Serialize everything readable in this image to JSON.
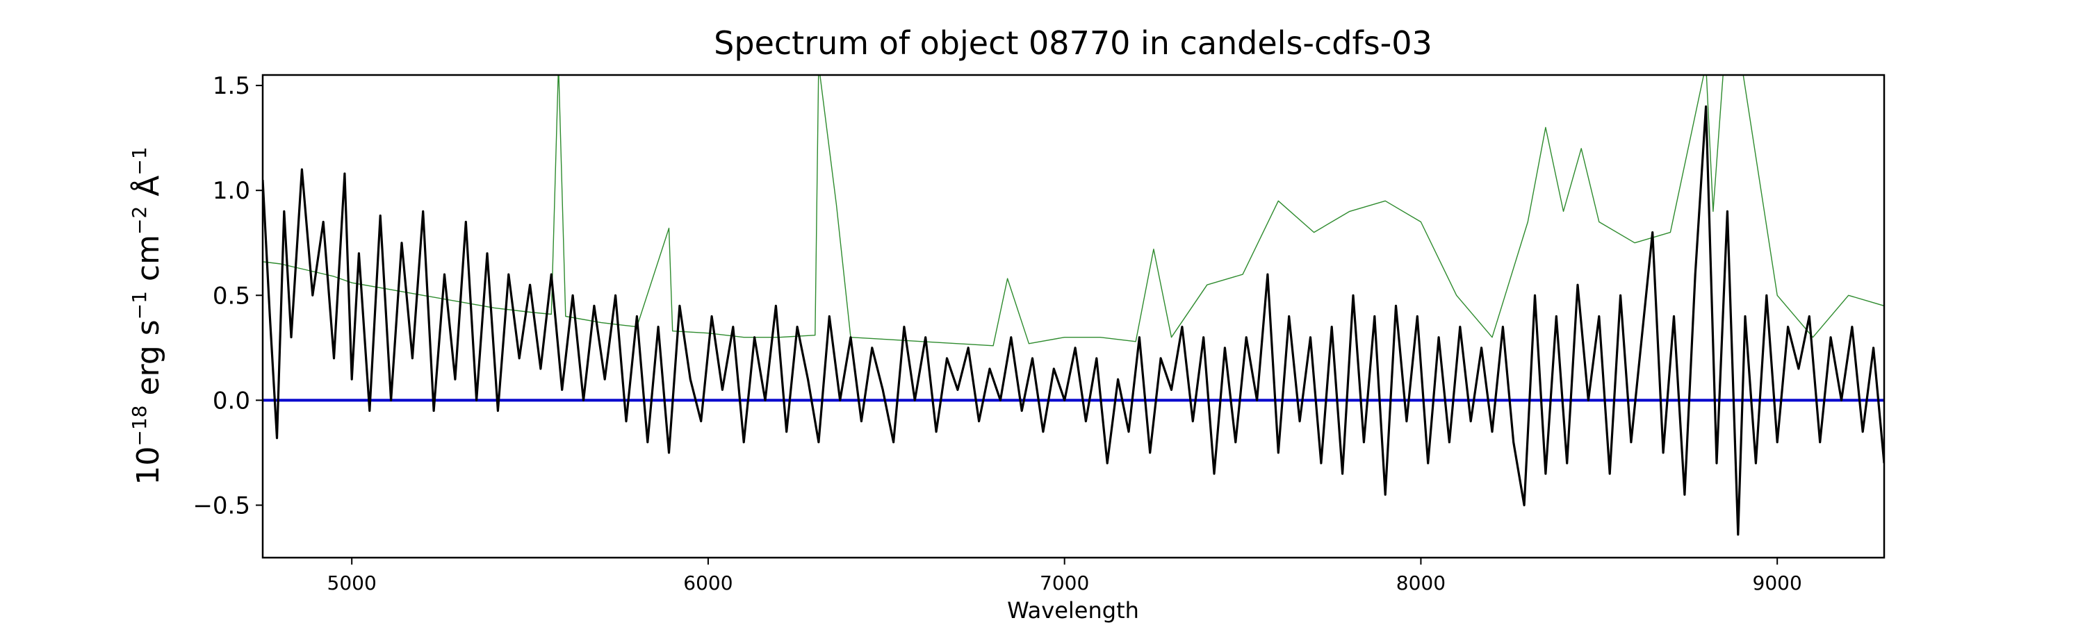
{
  "chart_data": {
    "type": "line",
    "title": "Spectrum of object 08770 in candels-cdfs-03",
    "xlabel": "Wavelength",
    "ylabel_parts": {
      "base": "10",
      "exp18": "−18",
      "erg": " erg s",
      "exp1a": "−1",
      "cm": " cm",
      "exp2": "−2",
      "ang": " Å",
      "exp1b": "−1"
    },
    "xlim": [
      4750,
      9300
    ],
    "ylim": [
      -0.75,
      1.55
    ],
    "xticks": [
      {
        "value": 5000,
        "label": "5000"
      },
      {
        "value": 6000,
        "label": "6000"
      },
      {
        "value": 7000,
        "label": "7000"
      },
      {
        "value": 8000,
        "label": "8000"
      },
      {
        "value": 9000,
        "label": "9000"
      }
    ],
    "yticks": [
      {
        "value": -0.5,
        "label": "−0.5"
      },
      {
        "value": 0.0,
        "label": "0.0"
      },
      {
        "value": 0.5,
        "label": "0.5"
      },
      {
        "value": 1.0,
        "label": "1.0"
      },
      {
        "value": 1.5,
        "label": "1.5"
      }
    ],
    "series": [
      {
        "role": "error",
        "color": "#2e8b2e",
        "x": [
          4750,
          4800,
          4850,
          4900,
          4950,
          5000,
          5100,
          5200,
          5300,
          5400,
          5500,
          5560,
          5580,
          5600,
          5700,
          5800,
          5890,
          5900,
          6000,
          6100,
          6200,
          6300,
          6310,
          6360,
          6400,
          6500,
          6600,
          6700,
          6800,
          6840,
          6900,
          7000,
          7100,
          7200,
          7250,
          7300,
          7400,
          7500,
          7600,
          7700,
          7800,
          7900,
          8000,
          8100,
          8200,
          8300,
          8350,
          8400,
          8450,
          8500,
          8600,
          8700,
          8800,
          8820,
          8850,
          8900,
          9000,
          9100,
          9200,
          9300
        ],
        "y": [
          0.66,
          0.65,
          0.63,
          0.61,
          0.59,
          0.56,
          0.53,
          0.5,
          0.47,
          0.44,
          0.42,
          0.41,
          1.6,
          0.4,
          0.37,
          0.35,
          0.82,
          0.33,
          0.32,
          0.3,
          0.3,
          0.31,
          1.6,
          0.93,
          0.3,
          0.29,
          0.28,
          0.27,
          0.26,
          0.58,
          0.27,
          0.3,
          0.3,
          0.28,
          0.72,
          0.3,
          0.55,
          0.6,
          0.95,
          0.8,
          0.9,
          0.95,
          0.85,
          0.5,
          0.3,
          0.85,
          1.3,
          0.9,
          1.2,
          0.85,
          0.75,
          0.8,
          1.6,
          0.9,
          1.6,
          1.6,
          0.5,
          0.3,
          0.5,
          0.45
        ]
      },
      {
        "role": "flux",
        "color": "#000000",
        "x": [
          4750,
          4770,
          4790,
          4810,
          4830,
          4860,
          4890,
          4920,
          4950,
          4980,
          5000,
          5020,
          5050,
          5080,
          5110,
          5140,
          5170,
          5200,
          5230,
          5260,
          5290,
          5320,
          5350,
          5380,
          5410,
          5440,
          5470,
          5500,
          5530,
          5560,
          5590,
          5620,
          5650,
          5680,
          5710,
          5740,
          5770,
          5800,
          5830,
          5860,
          5890,
          5920,
          5950,
          5980,
          6010,
          6040,
          6070,
          6100,
          6130,
          6160,
          6190,
          6220,
          6250,
          6280,
          6310,
          6340,
          6370,
          6400,
          6430,
          6460,
          6490,
          6520,
          6550,
          6580,
          6610,
          6640,
          6670,
          6700,
          6730,
          6760,
          6790,
          6820,
          6850,
          6880,
          6910,
          6940,
          6970,
          7000,
          7030,
          7060,
          7090,
          7120,
          7150,
          7180,
          7210,
          7240,
          7270,
          7300,
          7330,
          7360,
          7390,
          7420,
          7450,
          7480,
          7510,
          7540,
          7570,
          7600,
          7630,
          7660,
          7690,
          7720,
          7750,
          7780,
          7810,
          7840,
          7870,
          7900,
          7930,
          7960,
          7990,
          8020,
          8050,
          8080,
          8110,
          8140,
          8170,
          8200,
          8230,
          8260,
          8290,
          8320,
          8350,
          8380,
          8410,
          8440,
          8470,
          8500,
          8530,
          8560,
          8590,
          8620,
          8650,
          8680,
          8710,
          8740,
          8770,
          8800,
          8830,
          8860,
          8890,
          8910,
          8940,
          8970,
          9000,
          9030,
          9060,
          9090,
          9120,
          9150,
          9180,
          9210,
          9240,
          9270,
          9300
        ],
        "y": [
          1.05,
          0.4,
          -0.18,
          0.9,
          0.3,
          1.1,
          0.5,
          0.85,
          0.2,
          1.08,
          0.1,
          0.7,
          -0.05,
          0.88,
          0.0,
          0.75,
          0.2,
          0.9,
          -0.05,
          0.6,
          0.1,
          0.85,
          0.0,
          0.7,
          -0.05,
          0.6,
          0.2,
          0.55,
          0.15,
          0.6,
          0.05,
          0.5,
          0.0,
          0.45,
          0.1,
          0.5,
          -0.1,
          0.4,
          -0.2,
          0.35,
          -0.25,
          0.45,
          0.1,
          -0.1,
          0.4,
          0.05,
          0.35,
          -0.2,
          0.3,
          0.0,
          0.45,
          -0.15,
          0.35,
          0.1,
          -0.2,
          0.4,
          0.0,
          0.3,
          -0.1,
          0.25,
          0.05,
          -0.2,
          0.35,
          0.0,
          0.3,
          -0.15,
          0.2,
          0.05,
          0.25,
          -0.1,
          0.15,
          0.0,
          0.3,
          -0.05,
          0.2,
          -0.15,
          0.15,
          0.0,
          0.25,
          -0.1,
          0.2,
          -0.3,
          0.1,
          -0.15,
          0.3,
          -0.25,
          0.2,
          0.05,
          0.35,
          -0.1,
          0.3,
          -0.35,
          0.25,
          -0.2,
          0.3,
          0.0,
          0.6,
          -0.25,
          0.4,
          -0.1,
          0.3,
          -0.3,
          0.35,
          -0.35,
          0.5,
          -0.2,
          0.4,
          -0.45,
          0.45,
          -0.1,
          0.4,
          -0.3,
          0.3,
          -0.2,
          0.35,
          -0.1,
          0.25,
          -0.15,
          0.35,
          -0.2,
          -0.5,
          0.5,
          -0.35,
          0.4,
          -0.3,
          0.55,
          0.0,
          0.4,
          -0.35,
          0.5,
          -0.2,
          0.3,
          0.8,
          -0.25,
          0.4,
          -0.45,
          0.6,
          1.4,
          -0.3,
          0.9,
          -0.64,
          0.4,
          -0.3,
          0.5,
          -0.2,
          0.35,
          0.15,
          0.4,
          -0.2,
          0.3,
          0.0,
          0.35,
          -0.15,
          0.25,
          -0.3
        ]
      },
      {
        "role": "zero",
        "color": "#0000cc",
        "x": [
          4750,
          9300
        ],
        "y": [
          0,
          0
        ]
      }
    ],
    "grid": false,
    "legend": "none"
  }
}
